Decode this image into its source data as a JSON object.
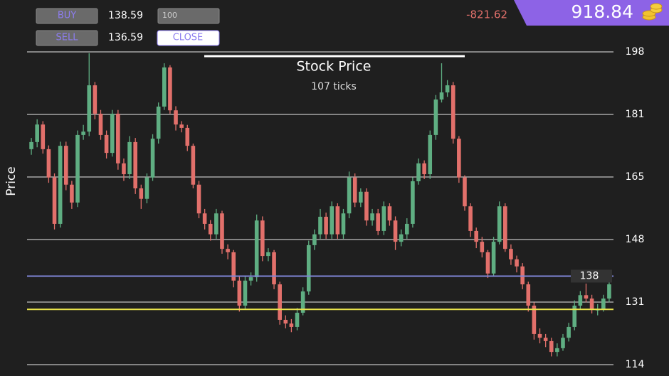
{
  "controls": {
    "buy": "BUY",
    "buy_price": 138.59,
    "quantity": "100",
    "sell": "SELL",
    "sell_price": 136.59,
    "close": "CLOSE"
  },
  "profit": -821.62,
  "balance": 918.84,
  "chart_data": {
    "type": "candlestick",
    "title": "Stock Price",
    "subtitle": "107 ticks",
    "y_label": "Price",
    "ylim": [
      114.3,
      198.05
    ],
    "yticks": [
      {
        "value": 198.05,
        "label": "198"
      },
      {
        "value": 181.3,
        "label": "181"
      },
      {
        "value": 164.55,
        "label": "165"
      },
      {
        "value": 147.8,
        "label": "148"
      },
      {
        "value": 131.05,
        "label": "131"
      },
      {
        "value": 114.3,
        "label": "114"
      }
    ],
    "grid": true,
    "up_color": "#5fae82",
    "down_color": "#e2706b",
    "price_line": {
      "value": 138,
      "color": "#7f86d6"
    },
    "entry_line": {
      "value": 129.1,
      "color": "#e8e34c"
    },
    "open": [
      172.0,
      173.9,
      178.6,
      172.0,
      164.4,
      152.0,
      172.9,
      162.5,
      157.7,
      175.8,
      176.7,
      189.1,
      181.5,
      175.8,
      171.0,
      181.5,
      168.2,
      165.3,
      173.9,
      161.5,
      158.7,
      164.4,
      174.8,
      183.4,
      193.9,
      182.4,
      178.6,
      177.7,
      172.9,
      162.5,
      154.8,
      152.0,
      149.2,
      154.8,
      145.3,
      144.4,
      136.8,
      130.1,
      136.8,
      137.7,
      152.9,
      143.4,
      144.4,
      135.8,
      126.3,
      125.3,
      124.4,
      128.2,
      133.9,
      146.3,
      149.2,
      153.9,
      149.2,
      156.7,
      149.2,
      154.8,
      164.4,
      157.7,
      160.6,
      152.9,
      154.8,
      150.1,
      156.7,
      152.9,
      147.2,
      149.2,
      152.0,
      163.4,
      168.2,
      165.3,
      175.8,
      185.3,
      187.2,
      189.1,
      174.8,
      164.4,
      156.7,
      150.1,
      147.2,
      144.4,
      138.7,
      147.2,
      156.7,
      145.3,
      142.5,
      140.6,
      135.8,
      130.1,
      122.5,
      121.5,
      120.6,
      117.7,
      118.7,
      121.5,
      124.4,
      130.1,
      132.9,
      132.0,
      129.1,
      129.1,
      132.0
    ],
    "high": [
      175.0,
      180.0,
      179.5,
      173.0,
      165.5,
      174.0,
      174.0,
      163.5,
      177.0,
      178.5,
      197.7,
      190.0,
      182.5,
      177.0,
      182.5,
      182.5,
      169.5,
      175.5,
      175.0,
      162.5,
      165.5,
      176.0,
      184.5,
      195.0,
      194.5,
      183.5,
      179.5,
      178.5,
      173.5,
      163.5,
      156.0,
      153.0,
      156.0,
      155.5,
      146.5,
      145.0,
      138.0,
      138.0,
      139.0,
      154.5,
      154.0,
      145.5,
      145.0,
      136.5,
      127.5,
      126.5,
      129.5,
      135.0,
      147.5,
      150.5,
      156.0,
      155.0,
      158.0,
      157.5,
      156.0,
      166.0,
      165.5,
      161.5,
      161.5,
      156.0,
      156.0,
      158.0,
      157.5,
      154.0,
      150.5,
      153.5,
      164.5,
      169.5,
      169.0,
      177.0,
      186.5,
      195.0,
      190.5,
      190.0,
      175.5,
      165.0,
      157.5,
      151.0,
      148.5,
      145.0,
      148.5,
      158.0,
      157.5,
      146.5,
      143.5,
      141.5,
      136.5,
      131.0,
      124.0,
      122.5,
      121.5,
      120.0,
      122.5,
      125.5,
      131.5,
      134.0,
      136.0,
      133.0,
      130.5,
      133.0,
      137.0
    ],
    "low": [
      170.5,
      172.5,
      170.8,
      163.0,
      150.5,
      151.0,
      161.0,
      156.0,
      156.5,
      174.5,
      175.5,
      180.0,
      174.5,
      169.5,
      170.0,
      166.5,
      163.5,
      164.0,
      160.0,
      156.0,
      157.5,
      163.5,
      173.5,
      182.5,
      181.5,
      177.0,
      176.5,
      171.5,
      161.5,
      153.5,
      150.5,
      147.5,
      148.0,
      144.0,
      142.5,
      135.0,
      128.5,
      129.0,
      135.5,
      136.5,
      142.0,
      142.0,
      134.5,
      125.0,
      124.0,
      123.0,
      123.5,
      127.5,
      133.0,
      145.0,
      148.0,
      148.0,
      148.0,
      148.0,
      148.0,
      153.5,
      156.5,
      156.5,
      151.5,
      151.5,
      149.0,
      149.0,
      151.5,
      145.0,
      146.0,
      148.0,
      151.0,
      162.5,
      164.0,
      164.0,
      174.5,
      184.5,
      186.0,
      173.5,
      163.0,
      155.5,
      148.5,
      145.5,
      143.0,
      137.5,
      138.0,
      146.5,
      144.5,
      141.0,
      139.0,
      134.5,
      128.5,
      121.0,
      120.0,
      119.0,
      116.5,
      116.5,
      118.0,
      120.5,
      123.5,
      129.0,
      131.0,
      128.0,
      127.5,
      128.5,
      131.0
    ],
    "close": [
      173.9,
      178.6,
      172.0,
      164.4,
      152.0,
      172.9,
      162.5,
      157.7,
      175.8,
      176.7,
      189.1,
      181.5,
      175.8,
      171.0,
      181.5,
      168.2,
      165.3,
      173.9,
      161.5,
      158.7,
      164.4,
      174.8,
      183.4,
      193.9,
      182.4,
      178.6,
      177.7,
      172.9,
      162.5,
      154.8,
      152.0,
      149.2,
      154.8,
      145.3,
      144.4,
      136.8,
      130.1,
      136.8,
      137.7,
      152.9,
      143.4,
      144.4,
      135.8,
      126.3,
      125.3,
      124.4,
      128.2,
      133.9,
      146.3,
      149.2,
      153.9,
      149.2,
      156.7,
      149.2,
      154.8,
      164.4,
      157.7,
      160.6,
      152.9,
      154.8,
      150.1,
      156.7,
      152.9,
      147.2,
      149.2,
      152.0,
      163.4,
      168.2,
      165.3,
      175.8,
      185.3,
      187.2,
      189.1,
      174.8,
      164.4,
      156.7,
      150.1,
      147.2,
      144.4,
      138.7,
      147.2,
      156.7,
      145.3,
      142.5,
      140.6,
      135.8,
      130.1,
      122.5,
      121.5,
      120.6,
      117.7,
      118.7,
      121.5,
      124.4,
      130.1,
      132.9,
      132.0,
      129.1,
      129.1,
      132.0,
      135.8
    ]
  }
}
